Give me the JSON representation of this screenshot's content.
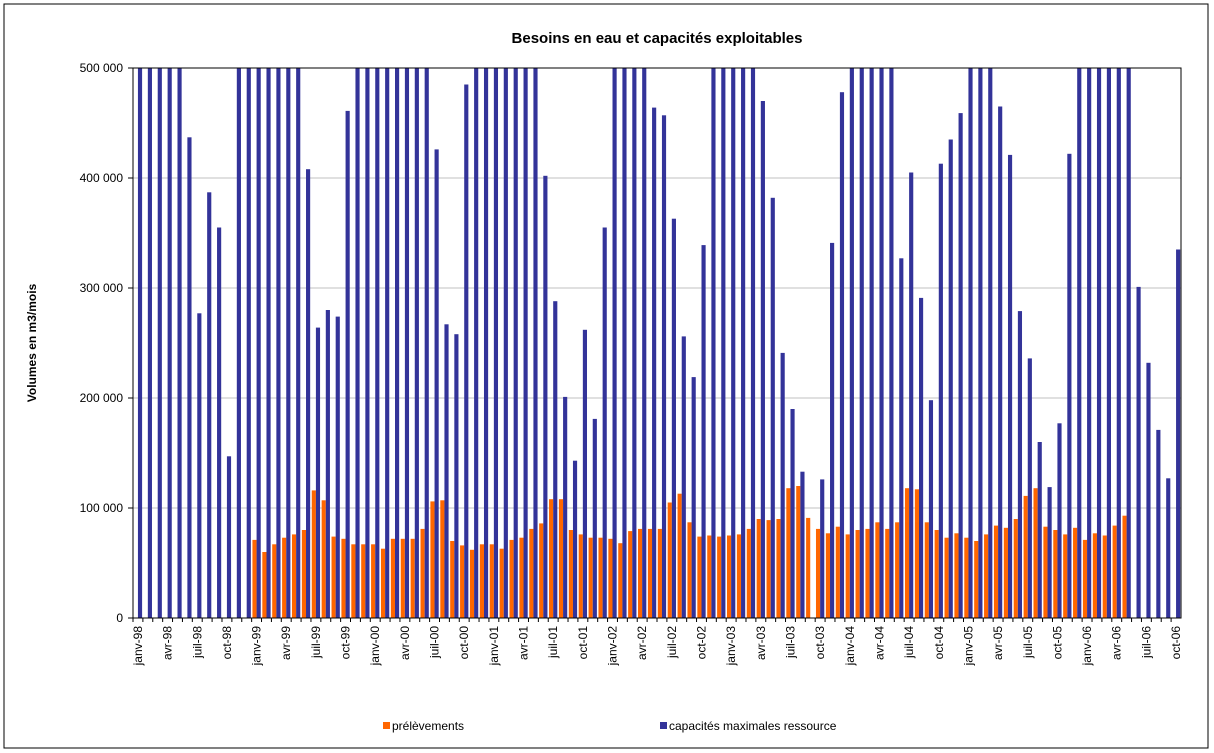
{
  "chart_data": {
    "type": "bar",
    "title": "Besoins en eau et capacités exploitables",
    "y_label": "Volumes en m3/mois",
    "categories": [
      "janv-98",
      null,
      null,
      "avr-98",
      null,
      null,
      "juil-98",
      null,
      null,
      "oct-98",
      null,
      null,
      "janv-99",
      null,
      null,
      "avr-99",
      null,
      null,
      "juil-99",
      null,
      null,
      "oct-99",
      null,
      null,
      "janv-00",
      null,
      null,
      "avr-00",
      null,
      null,
      "juil-00",
      null,
      null,
      "oct-00",
      null,
      null,
      "janv-01",
      null,
      null,
      "avr-01",
      null,
      null,
      "juil-01",
      null,
      null,
      "oct-01",
      null,
      null,
      "janv-02",
      null,
      null,
      "avr-02",
      null,
      null,
      "juil-02",
      null,
      null,
      "oct-02",
      null,
      null,
      "janv-03",
      null,
      null,
      "avr-03",
      null,
      null,
      "juil-03",
      null,
      null,
      "oct-03",
      null,
      null,
      "janv-04",
      null,
      null,
      "avr-04",
      null,
      null,
      "juil-04",
      null,
      null,
      "oct-04",
      null,
      null,
      "janv-05",
      null,
      null,
      "avr-05",
      null,
      null,
      "juil-05",
      null,
      null,
      "oct-05",
      null,
      null,
      "janv-06",
      null,
      null,
      "avr-06",
      null,
      null,
      "juil-06",
      null,
      null,
      "oct-06"
    ],
    "series": [
      {
        "name": "prélèvements",
        "color": "#ff6600",
        "values": [
          null,
          null,
          null,
          null,
          null,
          null,
          null,
          null,
          null,
          null,
          null,
          null,
          71000,
          60000,
          67000,
          73000,
          76000,
          80000,
          116000,
          107000,
          74000,
          72000,
          67000,
          67000,
          67000,
          63000,
          72000,
          72000,
          72000,
          81000,
          106000,
          107000,
          70000,
          66000,
          62000,
          67000,
          67000,
          63000,
          71000,
          73000,
          81000,
          86000,
          108000,
          108000,
          80000,
          76000,
          73000,
          73000,
          72000,
          68000,
          79000,
          81000,
          81000,
          81000,
          105000,
          113000,
          87000,
          74000,
          75000,
          74000,
          75000,
          76000,
          81000,
          90000,
          89000,
          90000,
          118000,
          120000,
          91000,
          81000,
          77000,
          83000,
          76000,
          80000,
          81000,
          87000,
          81000,
          87000,
          118000,
          117000,
          87000,
          80000,
          73000,
          77000,
          73000,
          70000,
          76000,
          84000,
          82000,
          90000,
          111000,
          118000,
          83000,
          80000,
          76000,
          82000,
          71000,
          77000,
          75000,
          84000,
          93000,
          null,
          null,
          null,
          null,
          null
        ]
      },
      {
        "name": "capacités maximales ressource",
        "color": "#333399",
        "values": [
          500000,
          500000,
          500000,
          500000,
          500000,
          437000,
          277000,
          387000,
          355000,
          147000,
          500000,
          500000,
          500000,
          500000,
          500000,
          500000,
          500000,
          408000,
          264000,
          280000,
          274000,
          461000,
          500000,
          500000,
          500000,
          500000,
          500000,
          500000,
          500000,
          500000,
          426000,
          267000,
          258000,
          485000,
          500000,
          500000,
          500000,
          500000,
          500000,
          500000,
          500000,
          402000,
          288000,
          201000,
          143000,
          262000,
          181000,
          355000,
          500000,
          500000,
          500000,
          500000,
          464000,
          457000,
          363000,
          256000,
          219000,
          339000,
          500000,
          500000,
          500000,
          500000,
          500000,
          470000,
          382000,
          241000,
          190000,
          133000,
          null,
          126000,
          341000,
          478000,
          500000,
          500000,
          500000,
          500000,
          500000,
          327000,
          405000,
          291000,
          198000,
          413000,
          435000,
          459000,
          500000,
          500000,
          500000,
          465000,
          421000,
          279000,
          236000,
          160000,
          119000,
          177000,
          422000,
          500000,
          500000,
          500000,
          500000,
          500000,
          500000,
          301000,
          232000,
          171000,
          127000,
          335000
        ]
      }
    ],
    "ylim": [
      0,
      500000
    ],
    "yticks": [
      0,
      {
        "value": 100000,
        "label": "100 000"
      },
      {
        "value": 200000,
        "label": "200 000"
      },
      {
        "value": 300000,
        "label": "300 000"
      },
      {
        "value": 400000,
        "label": "400 000"
      },
      {
        "value": 500000,
        "label": "500 000"
      }
    ],
    "grid": true,
    "legend": "bottom"
  }
}
